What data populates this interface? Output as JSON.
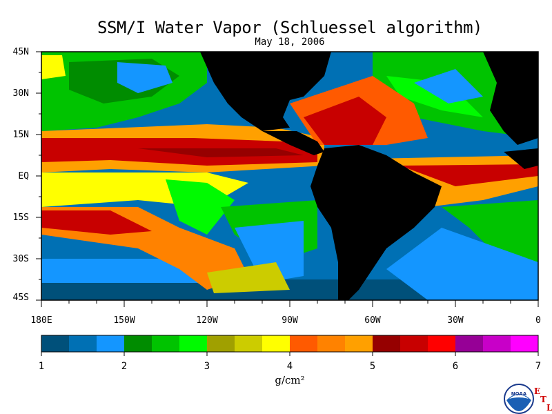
{
  "title": "SSM/I Water Vapor (Schluessel algorithm)",
  "date": "May 18, 2006",
  "lat_labels": [
    "45N",
    "30N",
    "15N",
    "EQ",
    "15S",
    "30S",
    "45S"
  ],
  "lon_labels": [
    "180E",
    "150W",
    "120W",
    "90W",
    "60W",
    "30W",
    "0"
  ],
  "colorbar": {
    "ticks": [
      "1",
      "2",
      "3",
      "4",
      "5",
      "6",
      "7"
    ],
    "units": "g/cm²",
    "colors": [
      "#00507a",
      "#0070b4",
      "#1496ff",
      "#008c00",
      "#00c300",
      "#00fa00",
      "#a0a000",
      "#cccc00",
      "#ffff00",
      "#ff5a00",
      "#ff8200",
      "#ffa000",
      "#960000",
      "#c80000",
      "#ff0000",
      "#960096",
      "#c800c8",
      "#ff00ff"
    ]
  },
  "map": {
    "land_color": "#000000",
    "ocean_base": "#0070b4"
  },
  "logo": {
    "agency": "NOAA",
    "lab_letters": [
      "E",
      "T",
      "L"
    ]
  }
}
